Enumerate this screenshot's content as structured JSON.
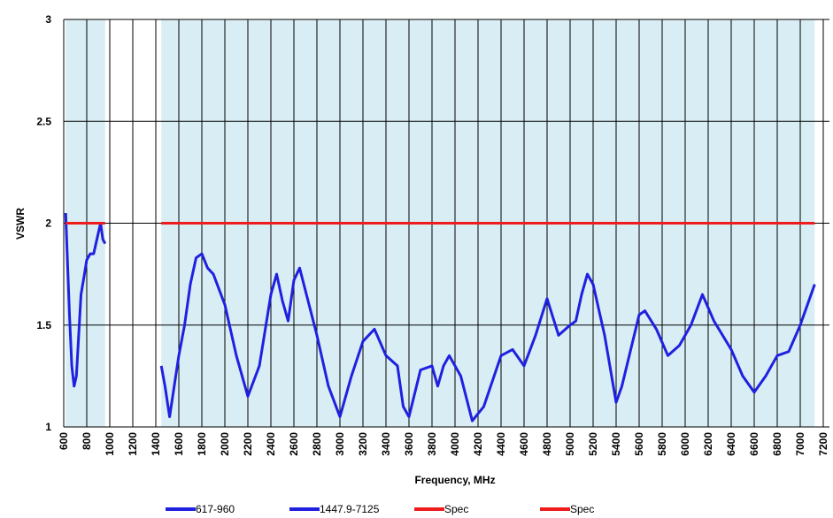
{
  "chart_data": {
    "type": "line",
    "xlabel": "Frequency, MHz",
    "ylabel": "VSWR",
    "xlim": [
      600,
      7200
    ],
    "ylim": [
      1,
      3
    ],
    "xticks": [
      600,
      800,
      1000,
      1200,
      1400,
      1600,
      1800,
      2000,
      2200,
      2400,
      2600,
      2800,
      3000,
      3200,
      3400,
      3600,
      3800,
      4000,
      4200,
      4400,
      4600,
      4800,
      5000,
      5200,
      5400,
      5600,
      5800,
      6000,
      6200,
      6400,
      6600,
      6800,
      7000,
      7200
    ],
    "yticks": [
      1,
      1.5,
      2,
      2.5,
      3
    ],
    "grid": true,
    "legend": "bottom",
    "band_color": "#d8eef4",
    "series": [
      {
        "name": "617-960",
        "color": "#2020e0",
        "x": [
          617,
          630,
          650,
          670,
          690,
          710,
          730,
          750,
          780,
          800,
          830,
          860,
          900,
          920,
          940,
          960
        ],
        "values": [
          2.05,
          1.85,
          1.55,
          1.3,
          1.2,
          1.25,
          1.45,
          1.65,
          1.75,
          1.82,
          1.85,
          1.85,
          1.95,
          2.0,
          1.92,
          1.9
        ]
      },
      {
        "name": "1447.9-7125",
        "color": "#2020e0",
        "x": [
          1447.9,
          1480,
          1520,
          1560,
          1600,
          1650,
          1700,
          1750,
          1800,
          1850,
          1900,
          2000,
          2100,
          2200,
          2300,
          2400,
          2450,
          2500,
          2550,
          2600,
          2650,
          2700,
          2800,
          2900,
          3000,
          3100,
          3200,
          3300,
          3400,
          3500,
          3550,
          3600,
          3700,
          3800,
          3850,
          3900,
          3950,
          4050,
          4150,
          4250,
          4400,
          4500,
          4600,
          4700,
          4800,
          4900,
          5000,
          5050,
          5100,
          5150,
          5200,
          5300,
          5400,
          5450,
          5600,
          5650,
          5750,
          5850,
          5950,
          6050,
          6150,
          6250,
          6400,
          6500,
          6600,
          6700,
          6800,
          6900,
          7000,
          7125
        ],
        "values": [
          1.3,
          1.2,
          1.05,
          1.2,
          1.35,
          1.5,
          1.7,
          1.83,
          1.85,
          1.78,
          1.75,
          1.6,
          1.35,
          1.15,
          1.3,
          1.65,
          1.75,
          1.62,
          1.52,
          1.72,
          1.78,
          1.67,
          1.45,
          1.2,
          1.05,
          1.25,
          1.42,
          1.48,
          1.35,
          1.3,
          1.1,
          1.05,
          1.28,
          1.3,
          1.2,
          1.3,
          1.35,
          1.25,
          1.03,
          1.1,
          1.35,
          1.38,
          1.3,
          1.45,
          1.63,
          1.45,
          1.5,
          1.52,
          1.65,
          1.75,
          1.7,
          1.45,
          1.12,
          1.2,
          1.55,
          1.57,
          1.48,
          1.35,
          1.4,
          1.5,
          1.65,
          1.52,
          1.38,
          1.25,
          1.17,
          1.25,
          1.35,
          1.37,
          1.5,
          1.7
        ]
      },
      {
        "name": "Spec",
        "color": "#ee1c1c",
        "x": [
          617,
          960
        ],
        "values": [
          2,
          2
        ]
      },
      {
        "name": "Spec",
        "color": "#ee1c1c",
        "x": [
          1447.9,
          7125
        ],
        "values": [
          2,
          2
        ]
      }
    ]
  }
}
